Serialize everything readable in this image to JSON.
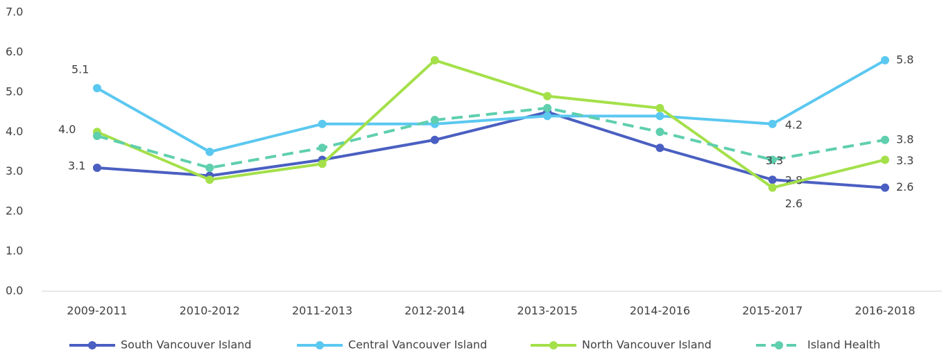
{
  "chart_data": {
    "type": "line",
    "categories": [
      "2009-2011",
      "2010-2012",
      "2011-2013",
      "2012-2014",
      "2013-2015",
      "2014-2016",
      "2015-2017",
      "2016-2018"
    ],
    "ylim": [
      0,
      7
    ],
    "yticks": [
      {
        "value": 0,
        "label": "0.0"
      },
      {
        "value": 1,
        "label": "1.0"
      },
      {
        "value": 2,
        "label": "2.0"
      },
      {
        "value": 3,
        "label": "3.0"
      },
      {
        "value": 4,
        "label": "4.0"
      },
      {
        "value": 5,
        "label": "5.0"
      },
      {
        "value": 6,
        "label": "6.0"
      },
      {
        "value": 7,
        "label": "7.0"
      }
    ],
    "series": [
      {
        "name": "South Vancouver Island",
        "color": "#4a5fc1",
        "dashed": false,
        "values": [
          3.1,
          2.9,
          3.3,
          3.8,
          4.5,
          3.6,
          2.8,
          2.6
        ],
        "value_labels": [
          "3.1",
          null,
          null,
          null,
          null,
          null,
          "2.8",
          "2.6"
        ]
      },
      {
        "name": "Central Vancouver Island",
        "color": "#5bc8f0",
        "dashed": false,
        "values": [
          5.1,
          3.5,
          4.2,
          4.2,
          4.4,
          4.4,
          4.2,
          5.8
        ],
        "value_labels": [
          "5.1",
          null,
          null,
          null,
          null,
          null,
          "4.2",
          "5.8"
        ]
      },
      {
        "name": "North Vancouver Island",
        "color": "#a4e04a",
        "dashed": false,
        "values": [
          4.0,
          2.8,
          3.2,
          5.8,
          4.9,
          4.6,
          2.6,
          3.3
        ],
        "value_labels": [
          "4.0",
          null,
          null,
          null,
          null,
          null,
          "2.6",
          "3.3"
        ]
      },
      {
        "name": "Island Health",
        "color": "#5fcfae",
        "dashed": true,
        "values": [
          3.9,
          3.1,
          3.6,
          4.3,
          4.6,
          4.0,
          3.3,
          3.8
        ],
        "value_labels": [
          null,
          null,
          null,
          null,
          null,
          null,
          "3.3",
          "3.8"
        ]
      }
    ]
  }
}
